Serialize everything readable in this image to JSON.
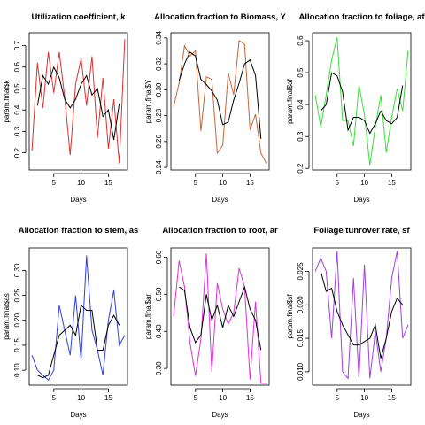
{
  "chart_data": [
    {
      "type": "line",
      "title": "Utilization coefficient, k",
      "xlabel": "Days",
      "ylabel": "param.final$k",
      "xlim": [
        0.5,
        18.5
      ],
      "ylim": [
        0.12,
        0.76
      ],
      "xticks": [
        5,
        10,
        15
      ],
      "yticks": [
        0.2,
        0.3,
        0.4,
        0.5,
        0.6,
        0.7
      ],
      "ytick_labels": [
        "0.2",
        "0.3",
        "0.4",
        "0.5",
        "0.6",
        "0.7"
      ],
      "line_color": "#e03030",
      "series": [
        {
          "values_x": [
            1,
            2,
            3,
            4,
            5,
            6,
            7,
            8,
            9,
            10,
            11,
            12,
            13,
            14,
            15,
            16,
            17,
            18
          ],
          "values_y": [
            0.21,
            0.62,
            0.41,
            0.67,
            0.48,
            0.67,
            0.46,
            0.19,
            0.52,
            0.64,
            0.42,
            0.65,
            0.27,
            0.55,
            0.22,
            0.45,
            0.15,
            0.73
          ]
        },
        {
          "values_x": [
            2,
            3,
            4,
            5,
            6,
            7,
            8,
            9,
            10,
            11,
            12,
            13,
            14,
            15,
            16,
            17
          ],
          "values_y": [
            0.42,
            0.56,
            0.52,
            0.6,
            0.55,
            0.45,
            0.41,
            0.45,
            0.52,
            0.56,
            0.47,
            0.5,
            0.37,
            0.4,
            0.26,
            0.43
          ]
        }
      ]
    },
    {
      "type": "line",
      "title": "Allocation fraction to Biomass, Y",
      "xlabel": "Days",
      "ylabel": "param.final$Y",
      "xlim": [
        0.5,
        18.5
      ],
      "ylim": [
        0.238,
        0.344
      ],
      "xticks": [
        5,
        10,
        15
      ],
      "yticks": [
        0.24,
        0.26,
        0.28,
        0.3,
        0.32,
        0.34
      ],
      "ytick_labels": [
        "0.24",
        "0.26",
        "0.28",
        "0.30",
        "0.32",
        "0.34"
      ],
      "line_color": "#c8643a",
      "series": [
        {
          "values_x": [
            1,
            2,
            3,
            4,
            5,
            6,
            7,
            8,
            9,
            10,
            11,
            12,
            13,
            14,
            15,
            16,
            17,
            18
          ],
          "values_y": [
            0.287,
            0.305,
            0.334,
            0.326,
            0.33,
            0.268,
            0.31,
            0.308,
            0.251,
            0.257,
            0.313,
            0.296,
            0.338,
            0.335,
            0.269,
            0.281,
            0.251,
            0.243
          ]
        },
        {
          "values_x": [
            2,
            3,
            4,
            5,
            6,
            7,
            8,
            9,
            10,
            11,
            12,
            13,
            14,
            15,
            16,
            17
          ],
          "values_y": [
            0.307,
            0.32,
            0.329,
            0.326,
            0.308,
            0.304,
            0.299,
            0.292,
            0.273,
            0.275,
            0.292,
            0.305,
            0.32,
            0.323,
            0.311,
            0.262
          ]
        }
      ]
    },
    {
      "type": "line",
      "title": "Allocation fraction to foliage, af",
      "xlabel": "Days",
      "ylabel": "param.final$af",
      "xlim": [
        0.5,
        18.5
      ],
      "ylim": [
        0.195,
        0.625
      ],
      "xticks": [
        5,
        10,
        15
      ],
      "yticks": [
        0.2,
        0.3,
        0.4,
        0.5,
        0.6
      ],
      "ytick_labels": [
        "0.2",
        "0.3",
        "0.4",
        "0.5",
        "0.6"
      ],
      "line_color": "#3ae03a",
      "series": [
        {
          "values_x": [
            1,
            2,
            3,
            4,
            5,
            6,
            7,
            8,
            9,
            10,
            11,
            12,
            13,
            14,
            15,
            16,
            17,
            18
          ],
          "values_y": [
            0.43,
            0.33,
            0.43,
            0.54,
            0.61,
            0.35,
            0.35,
            0.27,
            0.46,
            0.37,
            0.21,
            0.33,
            0.43,
            0.25,
            0.36,
            0.45,
            0.38,
            0.57
          ]
        },
        {
          "values_x": [
            2,
            3,
            4,
            5,
            6,
            7,
            8,
            9,
            10,
            11,
            12,
            13,
            14,
            15,
            16,
            17
          ],
          "values_y": [
            0.38,
            0.4,
            0.5,
            0.49,
            0.44,
            0.32,
            0.36,
            0.36,
            0.35,
            0.31,
            0.34,
            0.38,
            0.35,
            0.34,
            0.36,
            0.46
          ]
        }
      ]
    },
    {
      "type": "line",
      "title": "Allocation fraction to stem, as",
      "xlabel": "Days",
      "ylabel": "param.final$as",
      "xlim": [
        0.5,
        18.5
      ],
      "ylim": [
        0.07,
        0.345
      ],
      "xticks": [
        5,
        10,
        15
      ],
      "yticks": [
        0.1,
        0.15,
        0.2,
        0.25,
        0.3
      ],
      "ytick_labels": [
        "0.10",
        "0.15",
        "0.20",
        "0.25",
        "0.30"
      ],
      "line_color": "#3040e0",
      "series": [
        {
          "values_x": [
            1,
            2,
            3,
            4,
            5,
            6,
            7,
            8,
            9,
            10,
            11,
            12,
            13,
            14,
            15,
            16,
            17,
            18
          ],
          "values_y": [
            0.13,
            0.1,
            0.09,
            0.08,
            0.1,
            0.23,
            0.18,
            0.13,
            0.25,
            0.12,
            0.33,
            0.18,
            0.14,
            0.09,
            0.2,
            0.26,
            0.15,
            0.17
          ]
        },
        {
          "values_x": [
            2,
            3,
            4,
            5,
            6,
            7,
            8,
            9,
            10,
            11,
            12,
            13,
            14,
            15,
            16,
            17
          ],
          "values_y": [
            0.09,
            0.085,
            0.09,
            0.13,
            0.17,
            0.18,
            0.19,
            0.17,
            0.23,
            0.22,
            0.22,
            0.14,
            0.14,
            0.19,
            0.21,
            0.19
          ]
        }
      ]
    },
    {
      "type": "line",
      "title": "Allocation fraction to root, ar",
      "xlabel": "Days",
      "ylabel": "param.final$ar",
      "xlim": [
        0.5,
        18.5
      ],
      "ylim": [
        0.255,
        0.625
      ],
      "xticks": [
        5,
        10,
        15
      ],
      "yticks": [
        0.3,
        0.4,
        0.5,
        0.6
      ],
      "ytick_labels": [
        "0.30",
        "0.40",
        "0.50",
        "0.60"
      ],
      "line_color": "#e030e0",
      "series": [
        {
          "values_x": [
            1,
            2,
            3,
            4,
            5,
            6,
            7,
            8,
            9,
            10,
            11,
            12,
            13,
            14,
            15,
            16,
            17,
            18
          ],
          "values_y": [
            0.44,
            0.59,
            0.52,
            0.37,
            0.28,
            0.38,
            0.61,
            0.29,
            0.53,
            0.46,
            0.42,
            0.45,
            0.57,
            0.52,
            0.27,
            0.48,
            0.26,
            0.26
          ]
        },
        {
          "values_x": [
            2,
            3,
            4,
            5,
            6,
            7,
            8,
            9,
            10,
            11,
            12,
            13,
            14,
            15,
            16,
            17
          ],
          "values_y": [
            0.52,
            0.51,
            0.41,
            0.37,
            0.39,
            0.5,
            0.43,
            0.47,
            0.41,
            0.47,
            0.44,
            0.48,
            0.52,
            0.46,
            0.43,
            0.35
          ]
        }
      ]
    },
    {
      "type": "line",
      "title": "Foliage tunrover rate, sf",
      "xlabel": "Days",
      "ylabel": "param.final$sf",
      "xlim": [
        0.5,
        18.5
      ],
      "ylim": [
        0.008,
        0.0285
      ],
      "xticks": [
        5,
        10,
        15
      ],
      "yticks": [
        0.01,
        0.015,
        0.02,
        0.025
      ],
      "ytick_labels": [
        "0.010",
        "0.015",
        "0.020",
        "0.025"
      ],
      "line_color": "#a040e0",
      "series": [
        {
          "values_x": [
            1,
            2,
            3,
            4,
            5,
            6,
            7,
            8,
            9,
            10,
            11,
            12,
            13,
            14,
            15,
            16,
            17,
            18
          ],
          "values_y": [
            0.025,
            0.027,
            0.025,
            0.015,
            0.028,
            0.01,
            0.009,
            0.024,
            0.009,
            0.026,
            0.009,
            0.016,
            0.01,
            0.015,
            0.024,
            0.028,
            0.015,
            0.017
          ]
        },
        {
          "values_x": [
            2,
            3,
            4,
            5,
            6,
            7,
            8,
            9,
            10,
            11,
            12,
            13,
            14,
            15,
            16,
            17
          ],
          "values_y": [
            0.025,
            0.022,
            0.0225,
            0.019,
            0.017,
            0.0155,
            0.014,
            0.014,
            0.0145,
            0.015,
            0.017,
            0.012,
            0.015,
            0.019,
            0.021,
            0.02
          ]
        }
      ]
    }
  ]
}
